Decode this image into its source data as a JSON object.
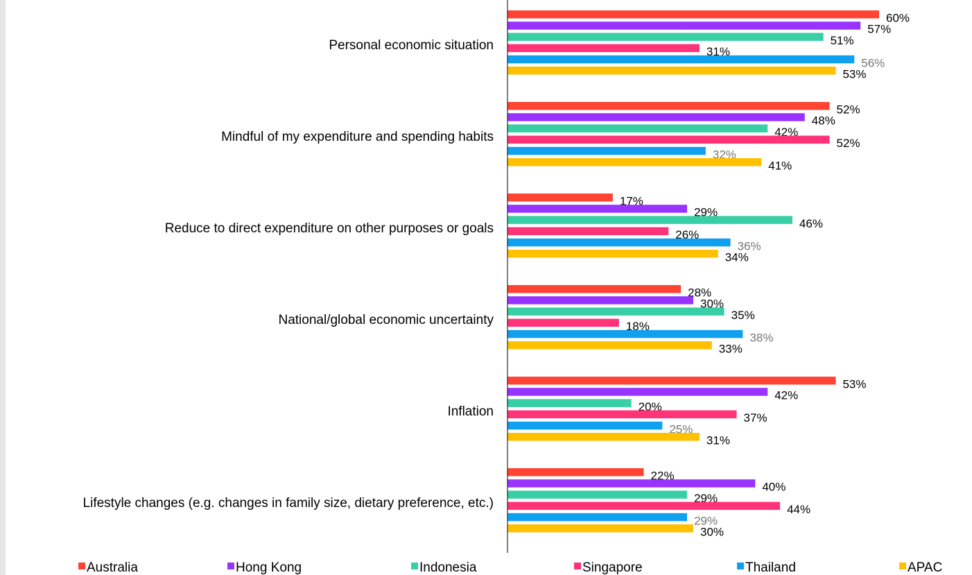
{
  "chart_data": {
    "type": "hbar",
    "categories": [
      "Personal economic situation",
      "Mindful of my expenditure and spending habits",
      "Reduce to direct expenditure on other purposes or goals",
      "National/global economic uncertainty",
      "Inflation",
      "Lifestyle changes (e.g. changes in family size, dietary preference, etc.)"
    ],
    "xlim": [
      0,
      75
    ],
    "legend": "bottom",
    "series": [
      {
        "name": "Australia",
        "color": "#ff4433",
        "label_color": "#000000",
        "values": [
          60,
          52,
          17,
          28,
          53,
          22
        ],
        "value_labels": [
          "60%",
          "52%",
          "17%",
          "28%",
          "53%",
          "22%"
        ]
      },
      {
        "name": "Hong Kong",
        "color": "#9933ff",
        "label_color": "#000000",
        "values": [
          57,
          48,
          29,
          30,
          42,
          40
        ],
        "value_labels": [
          "57%",
          "48%",
          "29%",
          "30%",
          "42%",
          "40%"
        ]
      },
      {
        "name": "Indonesia",
        "color": "#38cfa6",
        "label_color": "#000000",
        "values": [
          51,
          42,
          46,
          35,
          20,
          29
        ],
        "value_labels": [
          "51%",
          "42%",
          "46%",
          "35%",
          "20%",
          "29%"
        ]
      },
      {
        "name": "Singapore",
        "color": "#ff3377",
        "label_color": "#000000",
        "values": [
          31,
          52,
          26,
          18,
          37,
          44
        ],
        "value_labels": [
          "31%",
          "52%",
          "26%",
          "18%",
          "37%",
          "44%"
        ]
      },
      {
        "name": "Thailand",
        "color": "#10a0f0",
        "label_color": "#767676",
        "values": [
          56,
          32,
          36,
          38,
          25,
          29
        ],
        "value_labels": [
          "56%",
          "32%",
          "36%",
          "38%",
          "25%",
          "29%"
        ]
      },
      {
        "name": "APAC",
        "color": "#ffc000",
        "label_color": "#000000",
        "values": [
          53,
          41,
          34,
          33,
          31,
          30
        ],
        "value_labels": [
          "53%",
          "41%",
          "34%",
          "33%",
          "31%",
          "30%"
        ]
      }
    ]
  }
}
